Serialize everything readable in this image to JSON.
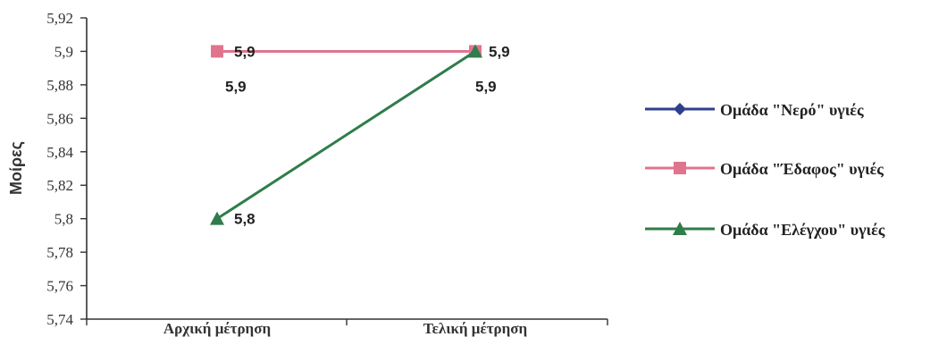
{
  "chart_data": {
    "type": "line",
    "title": "",
    "xlabel": "",
    "ylabel": "Μοίρες",
    "categories": [
      "Αρχική μέτρηση",
      "Τελική μέτρηση"
    ],
    "ylim": [
      5.74,
      5.92
    ],
    "yticks": [
      "5,92",
      "5,9",
      "5,88",
      "5,86",
      "5,84",
      "5,82",
      "5,8",
      "5,78",
      "5,76",
      "5,74"
    ],
    "ytick_values": [
      5.92,
      5.9,
      5.88,
      5.86,
      5.84,
      5.82,
      5.8,
      5.78,
      5.76,
      5.74
    ],
    "grid": false,
    "legend_position": "right",
    "series": [
      {
        "name": "Ομάδα \"Νερό\" υγιές",
        "values": [
          5.9,
          5.9
        ],
        "labels": [
          "5,9",
          "5,9"
        ],
        "color": "#2e3f8f",
        "marker": "diamond"
      },
      {
        "name": "Ομάδα \"Έδαφος\" υγιές",
        "values": [
          5.9,
          5.9
        ],
        "labels": [
          "5,9",
          "5,9"
        ],
        "color": "#e0748f",
        "marker": "square"
      },
      {
        "name": "Ομάδα \"Ελέγχου\" υγιές",
        "values": [
          5.8,
          5.9
        ],
        "labels": [
          "5,8",
          "5,9"
        ],
        "color": "#2e7d4a",
        "marker": "triangle"
      }
    ]
  }
}
